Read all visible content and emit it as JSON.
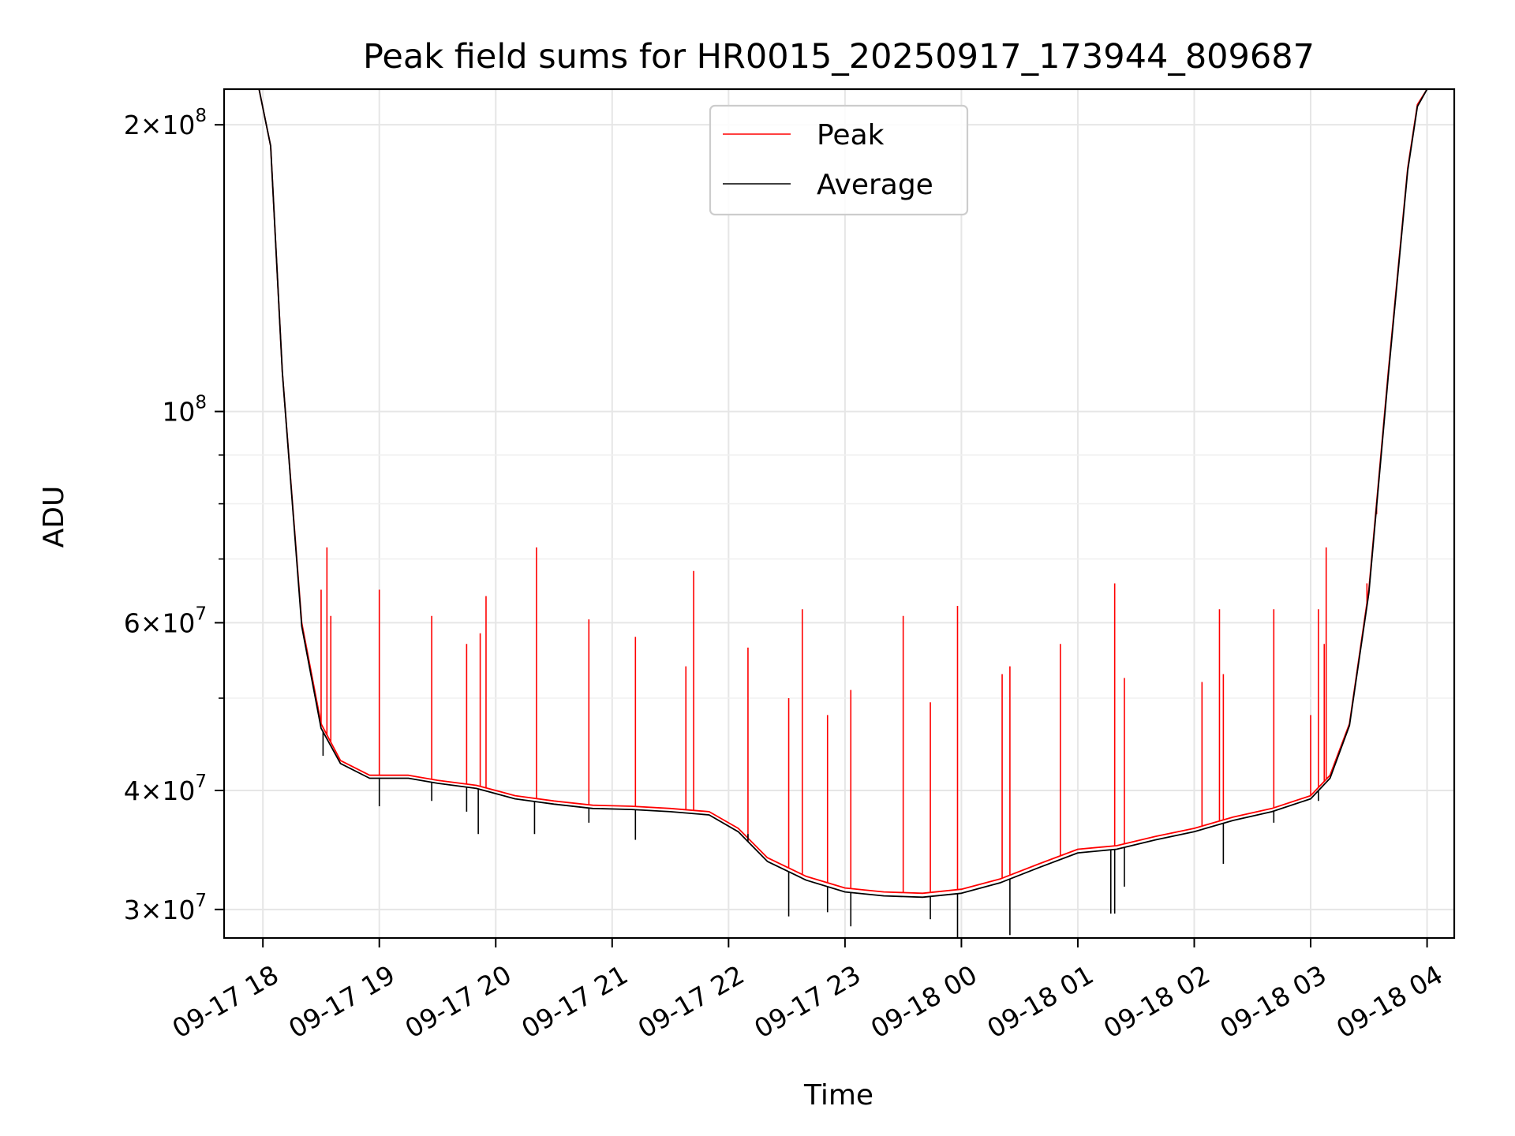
{
  "chart_data": {
    "type": "line",
    "title": "Peak field sums for HR0015_20250917_173944_809687",
    "xlabel": "Time",
    "ylabel": "ADU",
    "yscale": "log",
    "ylim": [
      28000000,
      218000000
    ],
    "xlim": [
      "09-17 17:40",
      "09-18 04:14"
    ],
    "x_ticks": [
      "09-17 18",
      "09-17 19",
      "09-17 20",
      "09-17 21",
      "09-17 22",
      "09-17 23",
      "09-18 00",
      "09-18 01",
      "09-18 02",
      "09-18 03",
      "09-18 04"
    ],
    "y_ticks": [
      {
        "value": 30000000,
        "base": "3",
        "exp": "7"
      },
      {
        "value": 40000000,
        "base": "4",
        "exp": "7"
      },
      {
        "value": 60000000,
        "base": "6",
        "exp": "7"
      },
      {
        "value": 100000000,
        "base": "",
        "exp": "8"
      },
      {
        "value": 200000000,
        "base": "2",
        "exp": "8"
      }
    ],
    "y_minor_ticks": [
      50000000,
      70000000,
      80000000,
      90000000
    ],
    "grid": true,
    "legend_position": "top-center",
    "series": [
      {
        "name": "Peak",
        "color": "#ff0000",
        "x": [
          "09-17 17:58",
          "09-17 18:04",
          "09-17 18:10",
          "09-17 18:20",
          "09-17 18:30",
          "09-17 18:40",
          "09-17 18:55",
          "09-17 19:15",
          "09-17 19:30",
          "09-17 19:50",
          "09-17 20:10",
          "09-17 20:30",
          "09-17 20:50",
          "09-17 21:10",
          "09-17 21:30",
          "09-17 21:50",
          "09-17 22:05",
          "09-17 22:20",
          "09-17 22:40",
          "09-17 23:00",
          "09-17 23:20",
          "09-17 23:40",
          "09-18 00:00",
          "09-18 00:20",
          "09-18 00:40",
          "09-18 01:00",
          "09-18 01:20",
          "09-18 01:40",
          "09-18 02:00",
          "09-18 02:20",
          "09-18 02:40",
          "09-18 03:00",
          "09-18 03:10",
          "09-18 03:20",
          "09-18 03:30",
          "09-18 03:40",
          "09-18 03:50",
          "09-18 03:55",
          "09-18 04:00"
        ],
        "y": [
          218000000,
          190000000,
          110000000,
          60000000,
          47000000,
          43000000,
          41500000,
          41500000,
          41000000,
          40500000,
          39500000,
          39000000,
          38600000,
          38500000,
          38300000,
          38000000,
          36500000,
          34000000,
          32500000,
          31600000,
          31300000,
          31200000,
          31500000,
          32300000,
          33500000,
          34700000,
          35000000,
          35800000,
          36500000,
          37500000,
          38300000,
          39500000,
          41500000,
          47000000,
          65000000,
          110000000,
          180000000,
          210000000,
          218000000
        ]
      },
      {
        "name": "Average",
        "color": "#000000",
        "x": [
          "09-17 17:58",
          "09-17 18:04",
          "09-17 18:10",
          "09-17 18:20",
          "09-17 18:30",
          "09-17 18:40",
          "09-17 18:55",
          "09-17 19:15",
          "09-17 19:30",
          "09-17 19:50",
          "09-17 20:10",
          "09-17 20:30",
          "09-17 20:50",
          "09-17 21:10",
          "09-17 21:30",
          "09-17 21:50",
          "09-17 22:05",
          "09-17 22:20",
          "09-17 22:40",
          "09-17 23:00",
          "09-17 23:20",
          "09-17 23:40",
          "09-18 00:00",
          "09-18 00:20",
          "09-18 00:40",
          "09-18 01:00",
          "09-18 01:20",
          "09-18 01:40",
          "09-18 02:00",
          "09-18 02:20",
          "09-18 02:40",
          "09-18 03:00",
          "09-18 03:10",
          "09-18 03:20",
          "09-18 03:30",
          "09-18 03:40",
          "09-18 03:50",
          "09-18 03:55",
          "09-18 04:00"
        ],
        "y": [
          218000000,
          190000000,
          110000000,
          59500000,
          46500000,
          42700000,
          41200000,
          41200000,
          40700000,
          40200000,
          39200000,
          38700000,
          38300000,
          38200000,
          38000000,
          37700000,
          36200000,
          33700000,
          32200000,
          31300000,
          31000000,
          30900000,
          31200000,
          32000000,
          33200000,
          34400000,
          34700000,
          35500000,
          36200000,
          37200000,
          38000000,
          39200000,
          41200000,
          46800000,
          64500000,
          109000000,
          179000000,
          209000000,
          218000000
        ]
      }
    ],
    "peak_spikes": [
      {
        "x": "09-17 18:30",
        "y": 65000000
      },
      {
        "x": "09-17 18:33",
        "y": 72000000
      },
      {
        "x": "09-17 18:35",
        "y": 61000000
      },
      {
        "x": "09-17 19:00",
        "y": 65000000
      },
      {
        "x": "09-17 19:27",
        "y": 61000000
      },
      {
        "x": "09-17 19:45",
        "y": 57000000
      },
      {
        "x": "09-17 19:52",
        "y": 58500000
      },
      {
        "x": "09-17 19:55",
        "y": 64000000
      },
      {
        "x": "09-17 20:21",
        "y": 72000000
      },
      {
        "x": "09-17 20:48",
        "y": 60500000
      },
      {
        "x": "09-17 21:12",
        "y": 58000000
      },
      {
        "x": "09-17 21:38",
        "y": 54000000
      },
      {
        "x": "09-17 21:42",
        "y": 68000000
      },
      {
        "x": "09-17 22:10",
        "y": 56500000
      },
      {
        "x": "09-17 22:31",
        "y": 50000000
      },
      {
        "x": "09-17 22:38",
        "y": 62000000
      },
      {
        "x": "09-17 22:51",
        "y": 48000000
      },
      {
        "x": "09-17 23:03",
        "y": 51000000
      },
      {
        "x": "09-17 23:30",
        "y": 61000000
      },
      {
        "x": "09-17 23:44",
        "y": 49500000
      },
      {
        "x": "09-17 23:58",
        "y": 62500000
      },
      {
        "x": "09-18 00:21",
        "y": 53000000
      },
      {
        "x": "09-18 00:25",
        "y": 54000000
      },
      {
        "x": "09-18 00:51",
        "y": 57000000
      },
      {
        "x": "09-18 01:19",
        "y": 66000000
      },
      {
        "x": "09-18 01:24",
        "y": 52500000
      },
      {
        "x": "09-18 02:04",
        "y": 52000000
      },
      {
        "x": "09-18 02:13",
        "y": 62000000
      },
      {
        "x": "09-18 02:15",
        "y": 53000000
      },
      {
        "x": "09-18 02:41",
        "y": 62000000
      },
      {
        "x": "09-18 03:00",
        "y": 48000000
      },
      {
        "x": "09-18 03:04",
        "y": 62000000
      },
      {
        "x": "09-18 03:07",
        "y": 57000000
      },
      {
        "x": "09-18 03:08",
        "y": 72000000
      },
      {
        "x": "09-18 03:29",
        "y": 66000000
      },
      {
        "x": "09-18 03:34",
        "y": 78000000
      }
    ],
    "average_dips": [
      {
        "x": "09-17 18:31",
        "y": 43500000
      },
      {
        "x": "09-17 19:00",
        "y": 38500000
      },
      {
        "x": "09-17 19:27",
        "y": 39000000
      },
      {
        "x": "09-17 19:45",
        "y": 38000000
      },
      {
        "x": "09-17 19:51",
        "y": 36000000
      },
      {
        "x": "09-17 20:20",
        "y": 36000000
      },
      {
        "x": "09-17 20:48",
        "y": 37000000
      },
      {
        "x": "09-17 21:12",
        "y": 35500000
      },
      {
        "x": "09-17 22:10",
        "y": 36000000
      },
      {
        "x": "09-17 22:31",
        "y": 29500000
      },
      {
        "x": "09-17 22:51",
        "y": 29800000
      },
      {
        "x": "09-17 23:03",
        "y": 28800000
      },
      {
        "x": "09-17 23:44",
        "y": 29300000
      },
      {
        "x": "09-17 23:58",
        "y": 27900000
      },
      {
        "x": "09-18 00:25",
        "y": 28200000
      },
      {
        "x": "09-18 01:17",
        "y": 29700000
      },
      {
        "x": "09-18 01:19",
        "y": 29700000
      },
      {
        "x": "09-18 01:24",
        "y": 31700000
      },
      {
        "x": "09-18 02:15",
        "y": 33500000
      },
      {
        "x": "09-18 02:41",
        "y": 37000000
      },
      {
        "x": "09-18 03:04",
        "y": 39000000
      }
    ]
  }
}
